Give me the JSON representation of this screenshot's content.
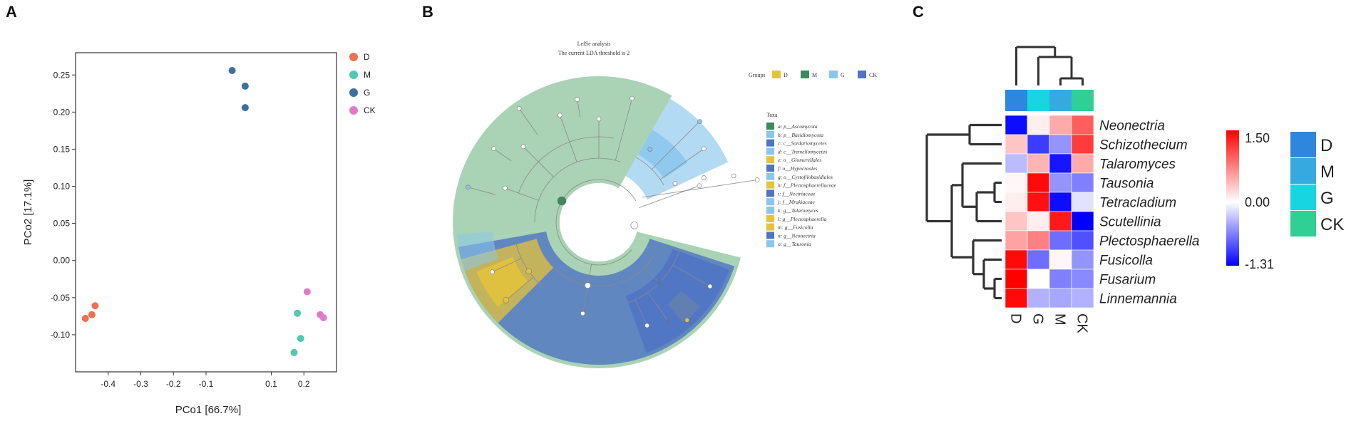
{
  "panels": {
    "a": "A",
    "b": "B",
    "c": "C"
  },
  "colors": {
    "D_pcoa": "#ef6f4f",
    "M_pcoa": "#4fc9b0",
    "G_pcoa": "#3d6f9f",
    "CK_pcoa": "#e07bc9",
    "lefse_D": "#e4c23a",
    "lefse_M": "#3c8a5c",
    "lefse_G": "#8ac6ec",
    "lefse_CK": "#4f74c4",
    "cladogram_bg": "#a9d3b4",
    "heat_high": "#ff0000",
    "heat_mid": "#ffffff",
    "heat_low": "#0000ff",
    "group_D": "#2f86de",
    "group_M": "#36a9e0",
    "group_G": "#17d6e2",
    "group_CK": "#2fcf95"
  },
  "chart_data": [
    {
      "type": "scatter",
      "panel": "A",
      "xlabel": "PCo1 [66.7%]",
      "ylabel": "PCo2 [17.1%]",
      "xlim": [
        -0.5,
        0.3
      ],
      "ylim": [
        -0.15,
        0.28
      ],
      "x_ticks": [
        "-0.4",
        "-0.3",
        "-0.2",
        "-0.1",
        "0.1",
        "0.2"
      ],
      "x_tick_values": [
        -0.4,
        -0.3,
        -0.2,
        -0.1,
        0.1,
        0.2
      ],
      "y_ticks": [
        "0.25",
        "0.20",
        "0.15",
        "0.10",
        "0.05",
        "0.00",
        "-0.05",
        "-0.10"
      ],
      "y_tick_values": [
        0.25,
        0.2,
        0.15,
        0.1,
        0.05,
        0.0,
        -0.05,
        -0.1
      ],
      "legend_position": "right",
      "series": [
        {
          "name": "D",
          "points": [
            [
              -0.47,
              -0.078
            ],
            [
              -0.45,
              -0.073
            ],
            [
              -0.44,
              -0.061
            ]
          ]
        },
        {
          "name": "M",
          "points": [
            [
              0.17,
              -0.124
            ],
            [
              0.19,
              -0.105
            ],
            [
              0.18,
              -0.071
            ]
          ]
        },
        {
          "name": "G",
          "points": [
            [
              -0.02,
              0.256
            ],
            [
              0.02,
              0.235
            ],
            [
              0.02,
              0.206
            ]
          ]
        },
        {
          "name": "CK",
          "points": [
            [
              0.21,
              -0.042
            ],
            [
              0.25,
              -0.073
            ],
            [
              0.26,
              -0.077
            ]
          ]
        }
      ]
    },
    {
      "type": "cladogram",
      "panel": "B",
      "title": "LefSe analysis",
      "subtitle": "The current LDA threshold is 2",
      "groups_label": "Groups",
      "groups": [
        "D",
        "M",
        "G",
        "CK"
      ],
      "taxa_label": "Taxa",
      "taxa": [
        {
          "label": "a: p__Ascomycota",
          "group": "M"
        },
        {
          "label": "b: p__Basidiomycota",
          "group": "G"
        },
        {
          "label": "c: c__Sordariomycetes",
          "group": "CK"
        },
        {
          "label": "d: c__Tremellomycetes",
          "group": "G"
        },
        {
          "label": "e: o__Glomerellales",
          "group": "D"
        },
        {
          "label": "f: o__Hypocreales",
          "group": "CK"
        },
        {
          "label": "g: o__Cystofilobasidiales",
          "group": "G"
        },
        {
          "label": "h: f__Plectosphaerellaceae",
          "group": "D"
        },
        {
          "label": "i: f__Nectriaceae",
          "group": "CK"
        },
        {
          "label": "j: f__Mrakiaceae",
          "group": "G"
        },
        {
          "label": "k: g__Talaromyces",
          "group": "G"
        },
        {
          "label": "l: g__Plectosphaerella",
          "group": "D"
        },
        {
          "label": "m: g__Fusicolla",
          "group": "D"
        },
        {
          "label": "n: g__Neonectria",
          "group": "CK"
        },
        {
          "label": "o: g__Tausonia",
          "group": "G"
        }
      ]
    },
    {
      "type": "heatmap",
      "panel": "C",
      "columns": [
        "D",
        "G",
        "M",
        "CK"
      ],
      "column_groups": [
        "D",
        "G",
        "M",
        "CK"
      ],
      "rows": [
        "Neonectria",
        "Schizothecium",
        "Talaromyces",
        "Tausonia",
        "Tetracladium",
        "Scutellinia",
        "Plectosphaerella",
        "Fusicolla",
        "Fusarium",
        "Linnemannia"
      ],
      "values": [
        [
          -1.25,
          0.1,
          0.5,
          0.95
        ],
        [
          0.35,
          -1.0,
          -0.55,
          1.15
        ],
        [
          -0.35,
          0.45,
          -1.2,
          0.5
        ],
        [
          0.05,
          1.45,
          -0.55,
          -0.65
        ],
        [
          0.1,
          1.4,
          -1.25,
          -0.15
        ],
        [
          0.35,
          0.1,
          1.35,
          -1.31
        ],
        [
          0.55,
          0.75,
          -0.75,
          -0.9
        ],
        [
          1.45,
          -0.75,
          0.05,
          -0.55
        ],
        [
          1.5,
          0.0,
          -0.65,
          -0.6
        ],
        [
          1.45,
          -0.4,
          -0.45,
          -0.4
        ]
      ],
      "scale_range": [
        -1.31,
        1.5
      ],
      "scale_labels": [
        "1.50",
        "0.00",
        "-1.31"
      ],
      "legend": [
        "D",
        "M",
        "G",
        "CK"
      ]
    }
  ]
}
